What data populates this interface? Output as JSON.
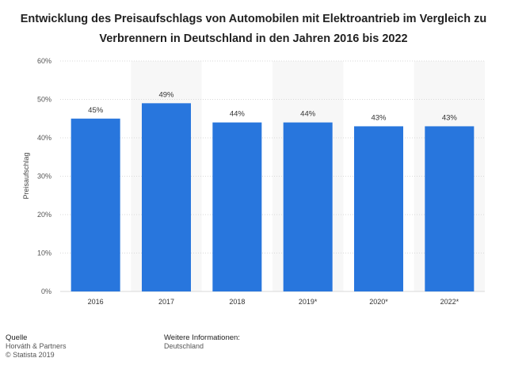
{
  "chart_data": {
    "type": "bar",
    "title": "Entwicklung des Preisaufschlags von Automobilen mit Elektroantrieb im Vergleich zu Verbrennern in Deutschland in den Jahren 2016 bis 2022",
    "xlabel": "",
    "ylabel": "Preisaufschlag",
    "categories": [
      "2016",
      "2017",
      "2018",
      "2019*",
      "2020*",
      "2022*"
    ],
    "values": [
      45,
      49,
      44,
      44,
      43,
      43
    ],
    "value_labels": [
      "45%",
      "49%",
      "44%",
      "44%",
      "43%",
      "43%"
    ],
    "ylim": [
      0,
      60
    ],
    "yticks": [
      0,
      10,
      20,
      30,
      40,
      50,
      60
    ],
    "ytick_labels": [
      "0%",
      "10%",
      "20%",
      "30%",
      "40%",
      "50%",
      "60%"
    ],
    "grid": true,
    "bar_color": "#2876dd",
    "band_color": "#f7f7f7",
    "grid_color": "#d9d9d9"
  },
  "footer": {
    "source_heading": "Quelle",
    "source_lines": [
      "Horváth & Partners",
      "© Statista 2019"
    ],
    "info_heading": "Weitere Informationen:",
    "info_lines": [
      "Deutschland"
    ]
  }
}
